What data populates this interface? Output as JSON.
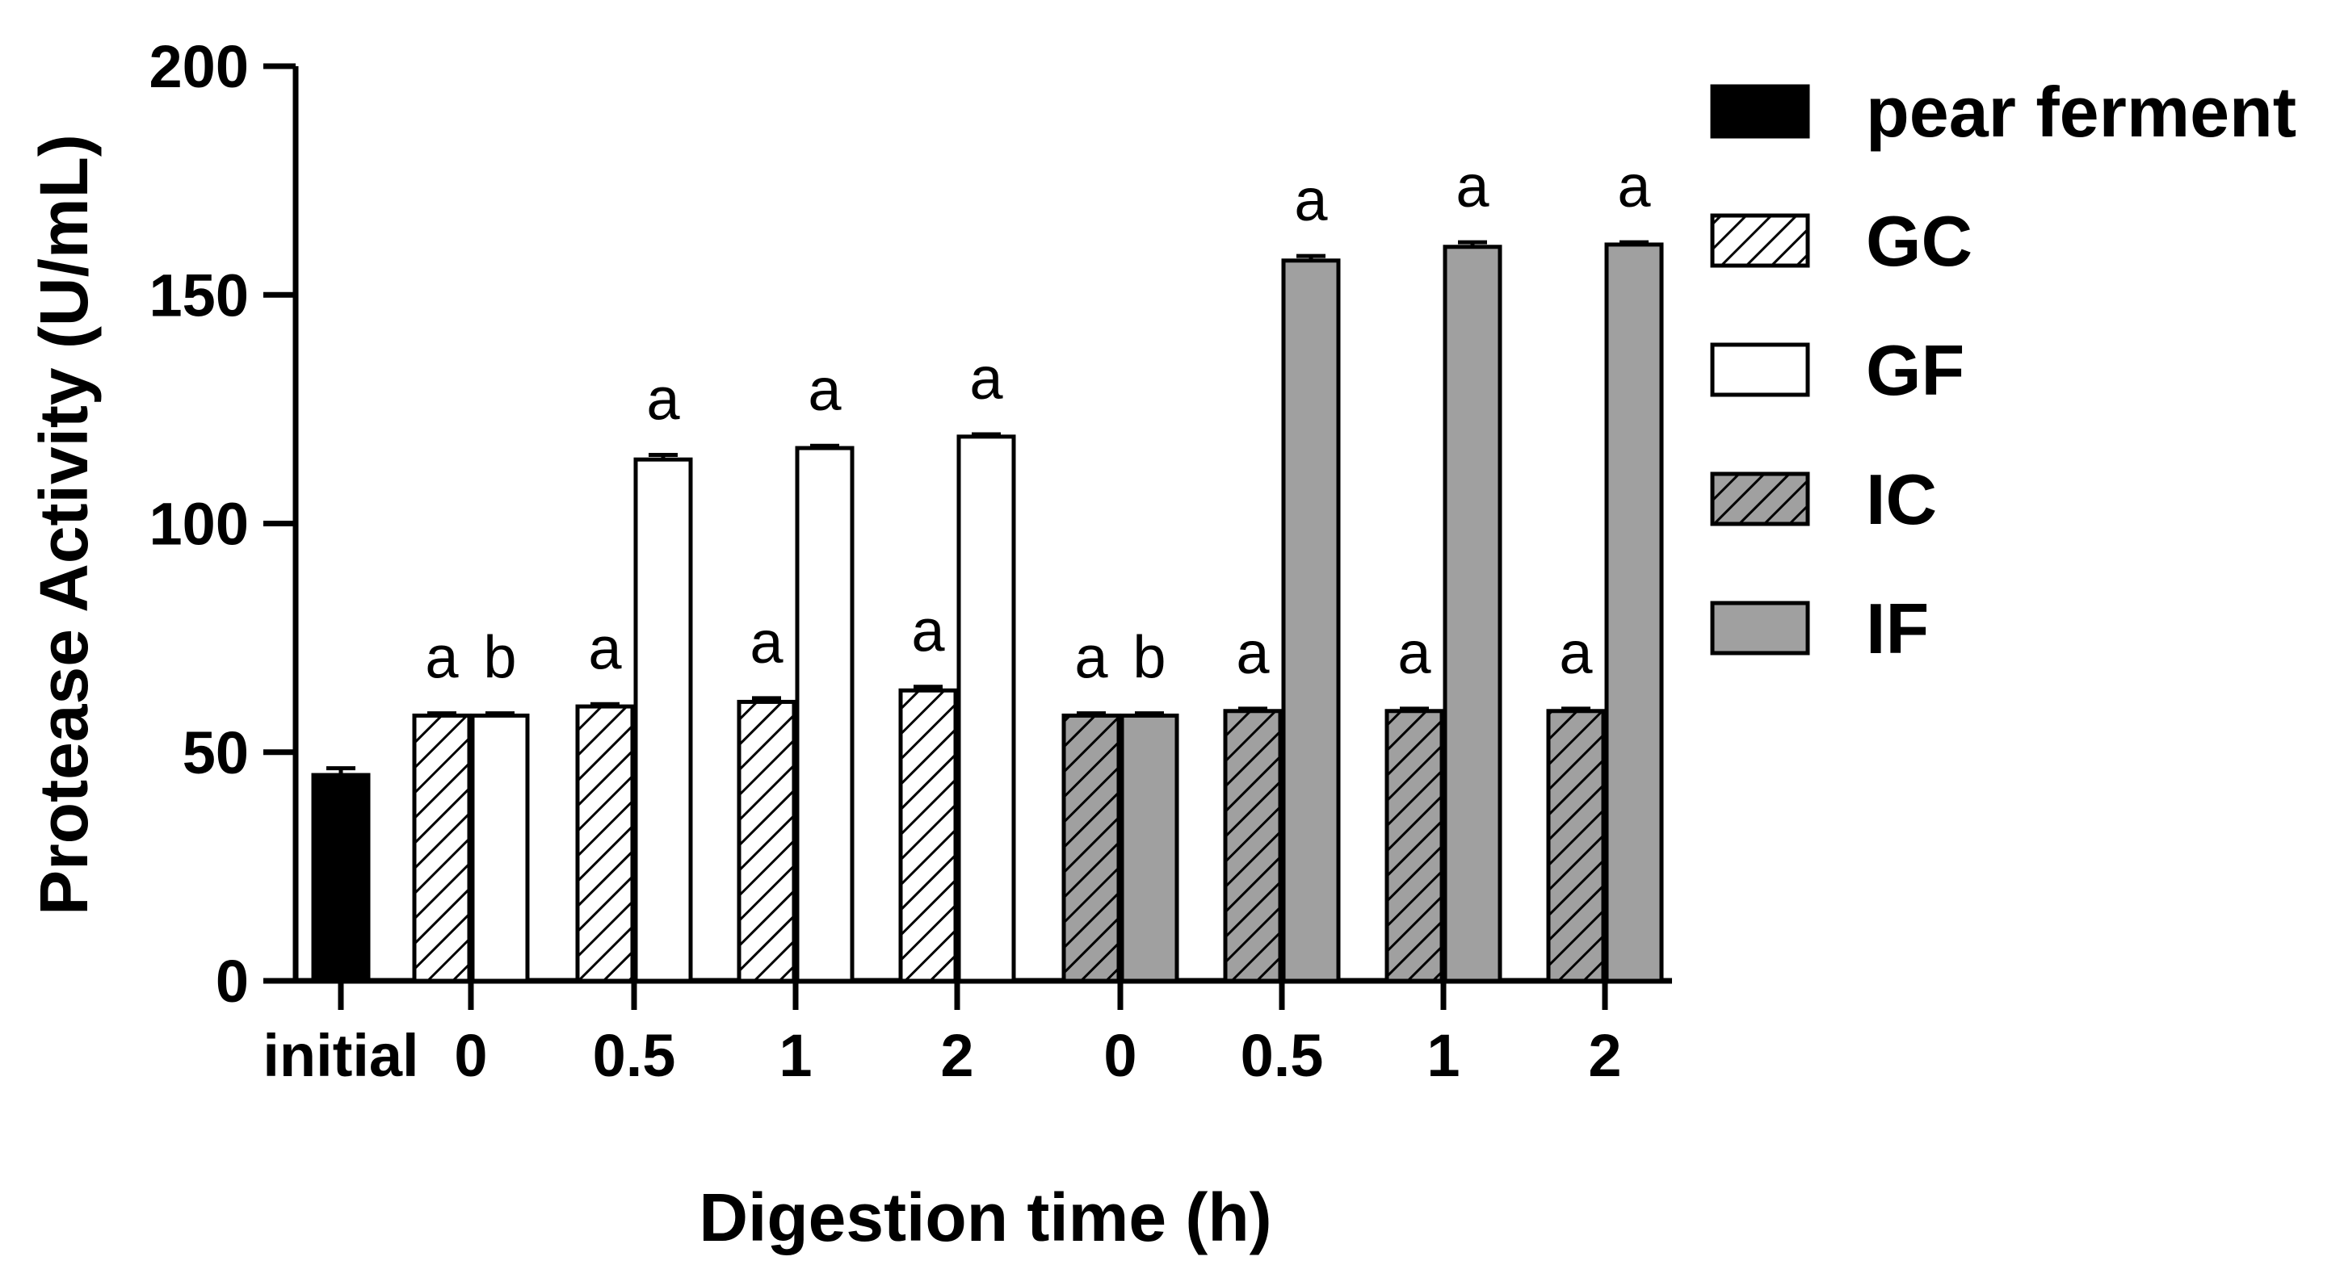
{
  "chart_data": {
    "type": "bar",
    "xlabel": "Digestion time (h)",
    "ylabel": "Protease Activity (U/mL)",
    "ylim": [
      0,
      200
    ],
    "y_ticks": [
      "0",
      "50",
      "100",
      "150",
      "200"
    ],
    "legend_position": "right",
    "series": [
      {
        "name": "pear ferment",
        "color": "#000000",
        "pattern": "solid"
      },
      {
        "name": "GC",
        "color": "#ffffff",
        "pattern": "hatch"
      },
      {
        "name": "GF",
        "color": "#ffffff",
        "pattern": "solid"
      },
      {
        "name": "IC",
        "color": "#a0a0a0",
        "pattern": "hatch"
      },
      {
        "name": "IF",
        "color": "#a0a0a0",
        "pattern": "solid"
      }
    ],
    "groups": [
      {
        "label": "initial",
        "bars": [
          {
            "series": "pear ferment",
            "value": 45,
            "error": 1.5,
            "sig": ""
          }
        ]
      },
      {
        "label": "0",
        "bars": [
          {
            "series": "GC",
            "value": 58,
            "error": 0.5,
            "sig": "a"
          },
          {
            "series": "GF",
            "value": 58,
            "error": 0.5,
            "sig": "b"
          }
        ]
      },
      {
        "label": "0.5",
        "bars": [
          {
            "series": "GC",
            "value": 60,
            "error": 0.5,
            "sig": "a"
          },
          {
            "series": "GF",
            "value": 114,
            "error": 1.0,
            "sig": "a"
          }
        ]
      },
      {
        "label": "1",
        "bars": [
          {
            "series": "GC",
            "value": 61,
            "error": 0.8,
            "sig": "a"
          },
          {
            "series": "GF",
            "value": 116.5,
            "error": 0.5,
            "sig": "a"
          }
        ]
      },
      {
        "label": "2",
        "bars": [
          {
            "series": "GC",
            "value": 63.5,
            "error": 0.8,
            "sig": "a"
          },
          {
            "series": "GF",
            "value": 119,
            "error": 0.5,
            "sig": "a"
          }
        ]
      },
      {
        "label": "0",
        "bars": [
          {
            "series": "IC",
            "value": 58,
            "error": 0.5,
            "sig": "a"
          },
          {
            "series": "IF",
            "value": 58,
            "error": 0.5,
            "sig": "b"
          }
        ]
      },
      {
        "label": "0.5",
        "bars": [
          {
            "series": "IC",
            "value": 59,
            "error": 0.5,
            "sig": "a"
          },
          {
            "series": "IF",
            "value": 157.5,
            "error": 1.0,
            "sig": "a"
          }
        ]
      },
      {
        "label": "1",
        "bars": [
          {
            "series": "IC",
            "value": 59,
            "error": 0.5,
            "sig": "a"
          },
          {
            "series": "IF",
            "value": 160.5,
            "error": 1.0,
            "sig": "a"
          }
        ]
      },
      {
        "label": "2",
        "bars": [
          {
            "series": "IC",
            "value": 59,
            "error": 0.5,
            "sig": "a"
          },
          {
            "series": "IF",
            "value": 161,
            "error": 0.5,
            "sig": "a"
          }
        ]
      }
    ]
  }
}
